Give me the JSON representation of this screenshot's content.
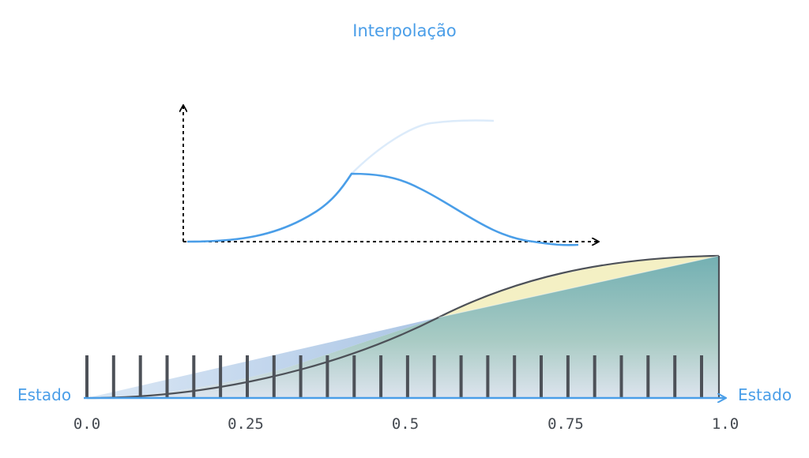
{
  "title": "Interpolação",
  "left_label": "Estado",
  "right_label": "Estado",
  "axis_ticks": [
    "0.0",
    "0.25",
    "0.5",
    "0.75",
    "1.0"
  ],
  "colors": {
    "accent": "#4a9ee8",
    "faded": "#dcebfa",
    "dark": "#4d5158",
    "yellow": "#f4f0c4",
    "teal": "#7fb7b9"
  },
  "top_graph": {
    "curve": "rise then fall (bell-like), with faded continuation of the rising ease curve"
  },
  "bottom_graph": {
    "curve": "ease-in-out from 0.0 to 1.0",
    "frame_count": 24
  }
}
